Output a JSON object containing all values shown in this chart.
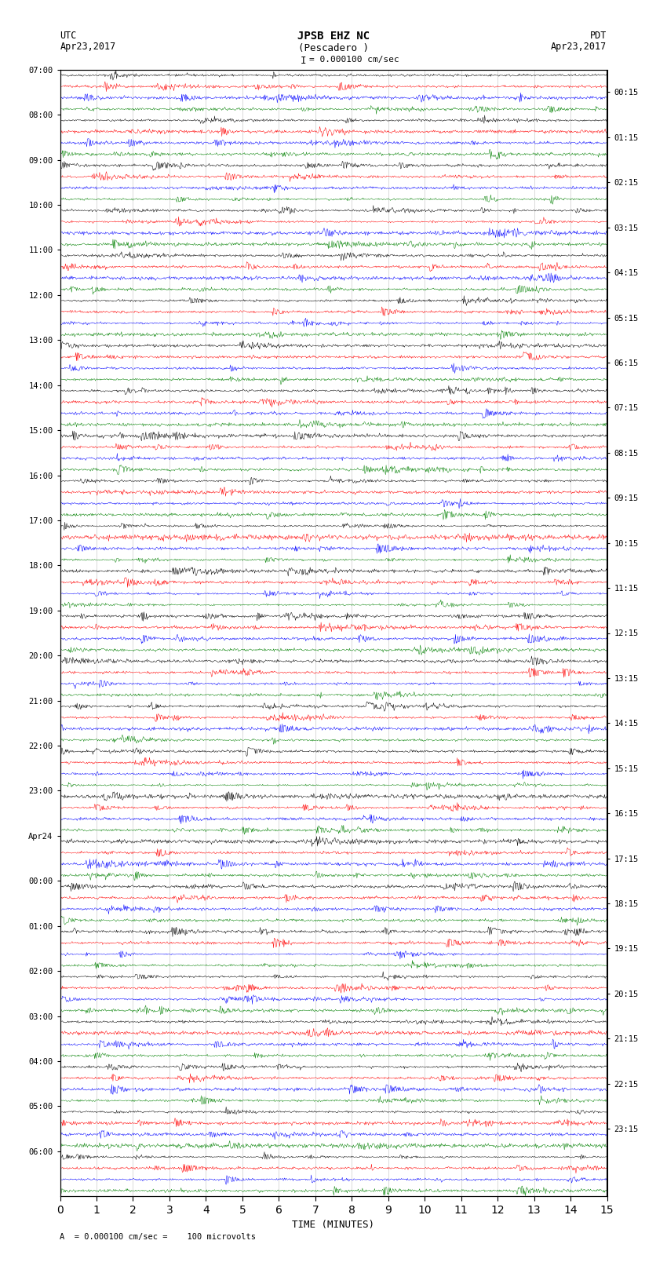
{
  "title_line1": "JPSB EHZ NC",
  "title_line2": "(Pescadero )",
  "scale_label": "= 0.000100 cm/sec",
  "footer_label": "A  = 0.000100 cm/sec =    100 microvolts",
  "utc_label": "UTC",
  "pdt_label": "PDT",
  "date_left": "Apr23,2017",
  "date_right": "Apr23,2017",
  "xlabel": "TIME (MINUTES)",
  "left_times": [
    "07:00",
    "08:00",
    "09:00",
    "10:00",
    "11:00",
    "12:00",
    "13:00",
    "14:00",
    "15:00",
    "16:00",
    "17:00",
    "18:00",
    "19:00",
    "20:00",
    "21:00",
    "22:00",
    "23:00",
    "Apr24",
    "00:00",
    "01:00",
    "02:00",
    "03:00",
    "04:00",
    "05:00",
    "06:00"
  ],
  "right_times": [
    "00:15",
    "01:15",
    "02:15",
    "03:15",
    "04:15",
    "05:15",
    "06:15",
    "07:15",
    "08:15",
    "09:15",
    "10:15",
    "11:15",
    "12:15",
    "13:15",
    "14:15",
    "15:15",
    "16:15",
    "17:15",
    "18:15",
    "19:15",
    "20:15",
    "21:15",
    "22:15",
    "23:15"
  ],
  "n_rows": 25,
  "traces_per_row": 4,
  "colors": [
    "black",
    "red",
    "blue",
    "green"
  ],
  "n_minutes": 15,
  "samples_per_minute": 60,
  "bg_color": "white",
  "fig_width": 8.5,
  "fig_height": 16.13,
  "noise_base": 0.08,
  "random_seed": 42
}
